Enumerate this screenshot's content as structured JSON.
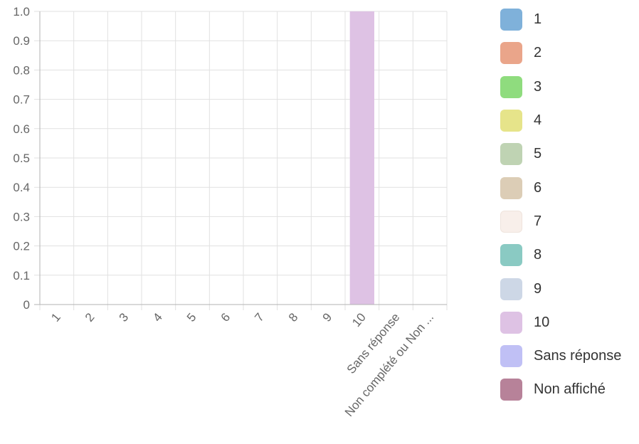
{
  "chart_data": {
    "type": "bar",
    "title": "",
    "xlabel": "",
    "ylabel": "",
    "ylim": [
      0,
      1
    ],
    "y_ticks": [
      "0",
      "0.1",
      "0.2",
      "0.3",
      "0.4",
      "0.5",
      "0.6",
      "0.7",
      "0.8",
      "0.9",
      "1.0"
    ],
    "categories": [
      "1",
      "2",
      "3",
      "4",
      "5",
      "6",
      "7",
      "8",
      "9",
      "10",
      "Sans réponse",
      "Non complété ou Non ..."
    ],
    "values": [
      0,
      0,
      0,
      0,
      0,
      0,
      0,
      0,
      0,
      1,
      0,
      0
    ],
    "grid": true,
    "legend_position": "right",
    "bar_colors": [
      "#7fb1da",
      "#eaa58a",
      "#8fdc7e",
      "#e6e48a",
      "#bfd3b3",
      "#dccdb6",
      "#f8efea",
      "#8acac3",
      "#cdd7e6",
      "#dec2e4",
      "#c0c0f5",
      "#b78299"
    ],
    "legend": [
      {
        "label": "1",
        "color": "#7fb1da"
      },
      {
        "label": "2",
        "color": "#eaa58a"
      },
      {
        "label": "3",
        "color": "#8fdc7e"
      },
      {
        "label": "4",
        "color": "#e6e48a"
      },
      {
        "label": "5",
        "color": "#bfd3b3"
      },
      {
        "label": "6",
        "color": "#dccdb6"
      },
      {
        "label": "7",
        "color": "#f8efea"
      },
      {
        "label": "8",
        "color": "#8acac3"
      },
      {
        "label": "9",
        "color": "#cdd7e6"
      },
      {
        "label": "10",
        "color": "#dec2e4"
      },
      {
        "label": "Sans réponse",
        "color": "#c0c0f5"
      },
      {
        "label": "Non affiché",
        "color": "#b78299"
      }
    ]
  }
}
